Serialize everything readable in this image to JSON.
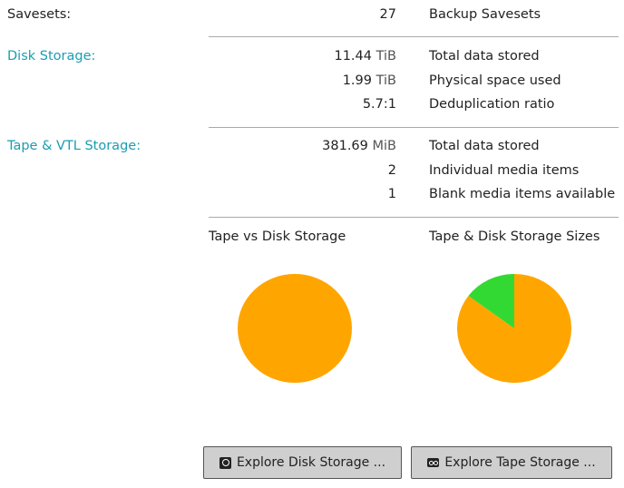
{
  "savesets": {
    "label": "Savesets:",
    "value": "27",
    "desc": "Backup Savesets"
  },
  "disk": {
    "label": "Disk Storage:",
    "rows": [
      {
        "num": "11.44",
        "unit": "TiB",
        "desc": "Total data stored"
      },
      {
        "num": "1.99",
        "unit": "TiB",
        "desc": "Physical space used"
      },
      {
        "num": "5.7:1",
        "unit": "",
        "desc": "Deduplication ratio"
      }
    ]
  },
  "tape": {
    "label": "Tape & VTL Storage:",
    "rows": [
      {
        "num": "381.69",
        "unit": "MiB",
        "desc": "Total data stored"
      },
      {
        "num": "2",
        "unit": "",
        "desc": "Individual media items"
      },
      {
        "num": "1",
        "unit": "",
        "desc": "Blank media items available"
      }
    ]
  },
  "chart_data": [
    {
      "type": "pie",
      "title": "Tape vs Disk Storage",
      "values": [
        11.44,
        0.000364
      ],
      "units": "TiB",
      "colors": [
        "#ffa500",
        "#33d933"
      ]
    },
    {
      "type": "pie",
      "title": "Tape & Disk Storage Sizes",
      "values": [
        11.44,
        1.99
      ],
      "units": "TiB",
      "colors": [
        "#ffa500",
        "#33d933"
      ]
    }
  ],
  "buttons": {
    "disk": "Explore Disk Storage ...",
    "tape": "Explore Tape Storage ...",
    "disk_icon": "hard-disk-icon",
    "tape_icon": "tape-icon"
  }
}
